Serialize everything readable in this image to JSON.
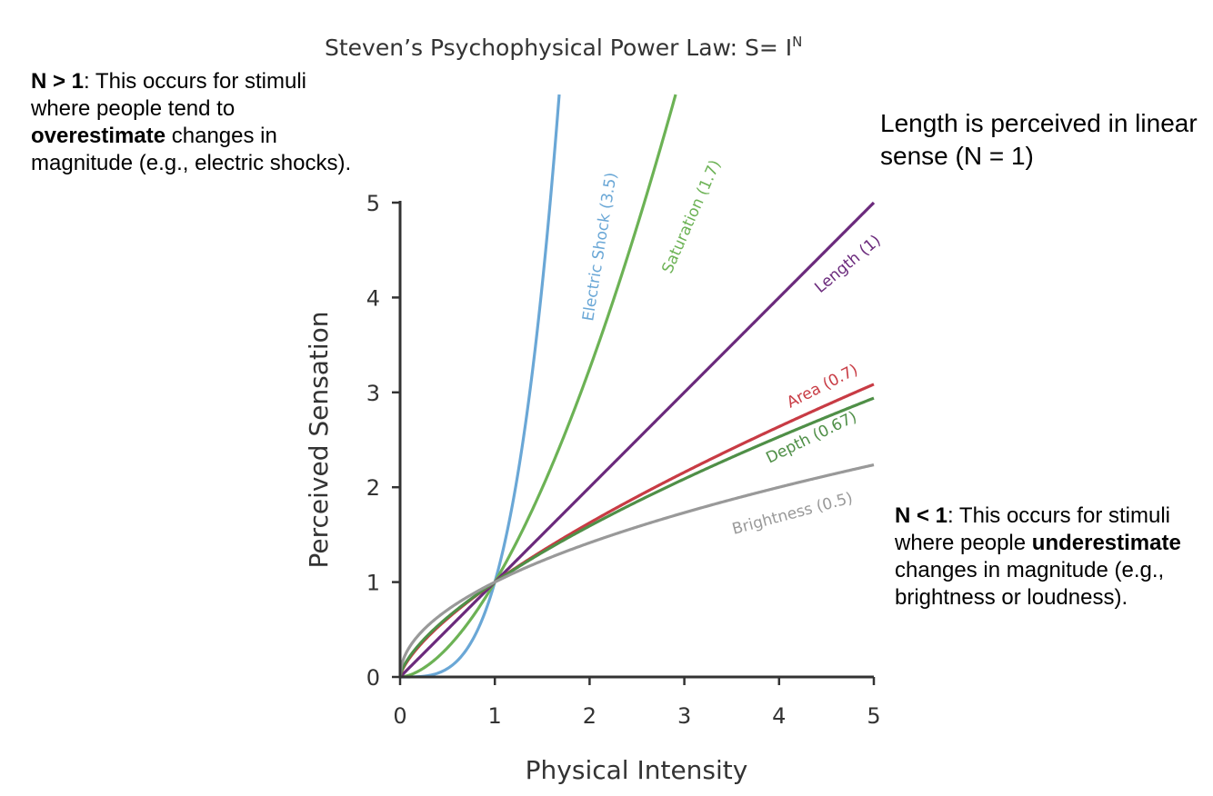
{
  "chart_data": {
    "type": "line",
    "title": "Steven’s Psychophysical Power Law: S= I",
    "title_superscript": "N",
    "xlabel": "Physical Intensity",
    "ylabel": "Perceived Sensation",
    "xlim": [
      0,
      5
    ],
    "ylim": [
      0,
      5
    ],
    "xticks": [
      "0",
      "1",
      "2",
      "3",
      "4",
      "5"
    ],
    "yticks": [
      "0",
      "1",
      "2",
      "3",
      "4",
      "5"
    ],
    "grid": false,
    "series": [
      {
        "name": "Electric Shock (3.5)",
        "exponent": 3.5,
        "color": "#6aa7d6"
      },
      {
        "name": "Saturation (1.7)",
        "exponent": 1.7,
        "color": "#6cb255"
      },
      {
        "name": "Length (1)",
        "exponent": 1,
        "color": "#6b2a7c"
      },
      {
        "name": "Area (0.7)",
        "exponent": 0.7,
        "color": "#c83b44"
      },
      {
        "name": "Depth (0.67)",
        "exponent": 0.67,
        "color": "#4f8f47"
      },
      {
        "name": "Brightness (0.5)",
        "exponent": 0.5,
        "color": "#999999"
      }
    ]
  },
  "notes": {
    "left_bold": "N > 1",
    "left_pre": ": This occurs for stimuli where people tend to ",
    "left_bold2": "overestimate",
    "left_post": " changes in magnitude (e.g., electric shocks).",
    "right_top": "Length is perceived in linear sense (N = 1)",
    "right_bold": "N < 1",
    "right_pre": ": This occurs for stimuli where people ",
    "right_bold2": "underestimate",
    "right_post": " changes in magnitude (e.g., brightness or loudness)."
  }
}
